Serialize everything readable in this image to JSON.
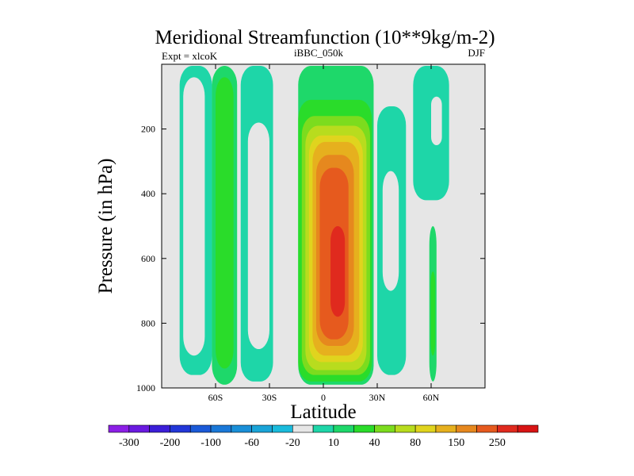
{
  "chart_data": {
    "type": "heatmap",
    "title": "Meridional Streamfunction (10**9kg/m-2)",
    "subtitle_left": "Expt = xlcoK",
    "subtitle_center": "iBBC_050k",
    "subtitle_right": "DJF",
    "xlabel": "Latitude",
    "ylabel": "Pressure (in hPa)",
    "xlim": [
      -90,
      90
    ],
    "ylim": [
      1000,
      0
    ],
    "x_ticks": [
      {
        "value": -60,
        "label": "60S"
      },
      {
        "value": -30,
        "label": "30S"
      },
      {
        "value": 0,
        "label": "0"
      },
      {
        "value": 30,
        "label": "30N"
      },
      {
        "value": 60,
        "label": "60N"
      }
    ],
    "y_ticks": [
      {
        "value": 200,
        "label": "200"
      },
      {
        "value": 400,
        "label": "400"
      },
      {
        "value": 600,
        "label": "600"
      },
      {
        "value": 800,
        "label": "800"
      },
      {
        "value": 1000,
        "label": "1000"
      }
    ],
    "colorbar_levels": [
      -300,
      -250,
      -200,
      -150,
      -100,
      -80,
      -60,
      -40,
      -20,
      -10,
      10,
      20,
      40,
      60,
      80,
      100,
      150,
      200,
      250,
      300
    ],
    "colorbar_labels": [
      "-300",
      "-200",
      "-100",
      "-60",
      "-20",
      "10",
      "40",
      "80",
      "150",
      "250"
    ],
    "colorbar_colors": [
      "#8c1fe6",
      "#6a1ae0",
      "#3b1ed8",
      "#2236d8",
      "#1b5ad8",
      "#1a78d8",
      "#1a8fd8",
      "#1aa4d8",
      "#1abbdc",
      "#e6e6e6",
      "#1ed6a8",
      "#1ed86a",
      "#2adc2a",
      "#7cdc1e",
      "#b8dc1e",
      "#e0d41e",
      "#e6b01e",
      "#e6881e",
      "#e65a1e",
      "#e02a1e",
      "#d81414"
    ],
    "cells": [
      {
        "name": "band-cell-1",
        "lat": [
          -80,
          -62
        ],
        "p": [
          5,
          960
        ],
        "level": -10
      },
      {
        "name": "band-cell-2",
        "lat": [
          -78,
          -66
        ],
        "p": [
          40,
          900
        ],
        "level": -20
      },
      {
        "name": "band-cell-3",
        "lat": [
          -62,
          -48
        ],
        "p": [
          5,
          990
        ],
        "level": 10
      },
      {
        "name": "band-cell-4",
        "lat": [
          -60,
          -50
        ],
        "p": [
          40,
          940
        ],
        "level": 20
      },
      {
        "name": "band-cell-5",
        "lat": [
          -46,
          -28
        ],
        "p": [
          5,
          980
        ],
        "level": -10
      },
      {
        "name": "band-cell-6",
        "lat": [
          -42,
          -30
        ],
        "p": [
          180,
          880
        ],
        "level": -20
      },
      {
        "name": "band-cell-7",
        "lat": [
          -14,
          28
        ],
        "p": [
          5,
          990
        ],
        "level": 10
      },
      {
        "name": "band-cell-8",
        "lat": [
          -14,
          27
        ],
        "p": [
          110,
          980
        ],
        "level": 20
      },
      {
        "name": "band-cell-9",
        "lat": [
          -12,
          26
        ],
        "p": [
          160,
          960
        ],
        "level": 40
      },
      {
        "name": "band-cell-10",
        "lat": [
          -10,
          24
        ],
        "p": [
          190,
          945
        ],
        "level": 60
      },
      {
        "name": "band-cell-11",
        "lat": [
          -8,
          22
        ],
        "p": [
          220,
          920
        ],
        "level": 80
      },
      {
        "name": "band-cell-12",
        "lat": [
          -6,
          20
        ],
        "p": [
          240,
          900
        ],
        "level": 100
      },
      {
        "name": "band-cell-13",
        "lat": [
          -4,
          17
        ],
        "p": [
          280,
          870
        ],
        "level": 150
      },
      {
        "name": "band-cell-14",
        "lat": [
          -2,
          14
        ],
        "p": [
          320,
          850
        ],
        "level": 200
      },
      {
        "name": "band-cell-15",
        "lat": [
          4,
          12
        ],
        "p": [
          500,
          780
        ],
        "level": 250
      },
      {
        "name": "band-cell-16",
        "lat": [
          30,
          46
        ],
        "p": [
          130,
          960
        ],
        "level": -10
      },
      {
        "name": "band-cell-17",
        "lat": [
          33,
          42
        ],
        "p": [
          330,
          700
        ],
        "level": -20
      },
      {
        "name": "band-cell-18",
        "lat": [
          50,
          70
        ],
        "p": [
          5,
          420
        ],
        "level": -10
      },
      {
        "name": "band-cell-19",
        "lat": [
          60,
          66
        ],
        "p": [
          100,
          250
        ],
        "level": -20
      },
      {
        "name": "band-cell-20",
        "lat": [
          59,
          63
        ],
        "p": [
          500,
          980
        ],
        "level": 10
      },
      {
        "name": "band-cell-21",
        "lat": [
          59.7,
          62.3
        ],
        "p": [
          640,
          900
        ],
        "level": 20
      }
    ]
  }
}
